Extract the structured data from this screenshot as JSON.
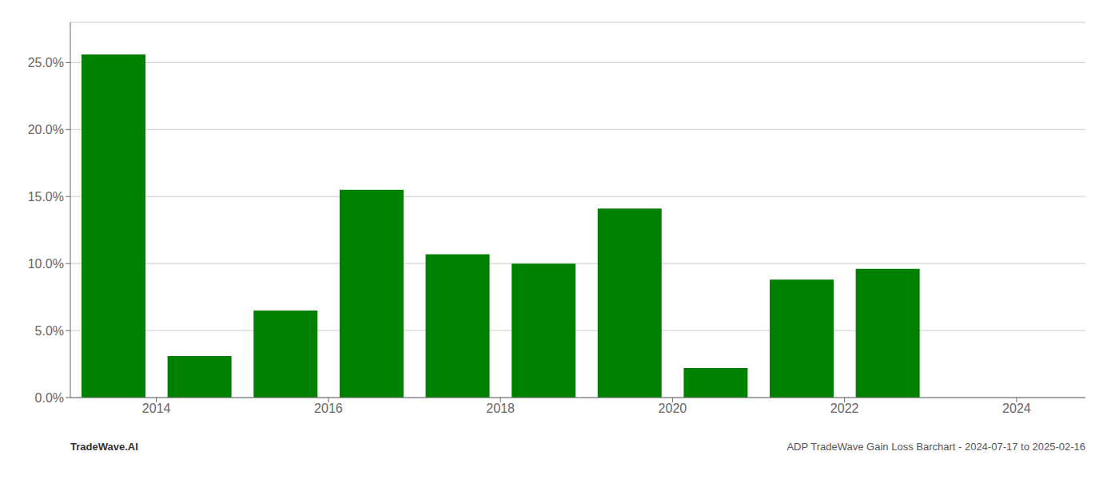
{
  "chart_data": {
    "type": "bar",
    "x": [
      2013.5,
      2014.5,
      2015.5,
      2016.5,
      2017.5,
      2018.5,
      2019.5,
      2020.5,
      2021.5,
      2022.5,
      2023.5
    ],
    "values": [
      0.256,
      0.031,
      0.065,
      0.155,
      0.107,
      0.1,
      0.141,
      0.022,
      0.088,
      0.096,
      0.0
    ],
    "color": "#008000",
    "xlim": [
      2013.0,
      2024.8
    ],
    "xticks": [
      2014,
      2016,
      2018,
      2020,
      2022,
      2024
    ],
    "ylim": [
      0,
      0.28
    ],
    "yticks": [
      {
        "value": 0.0,
        "label": "0.0%"
      },
      {
        "value": 0.05,
        "label": "5.0%"
      },
      {
        "value": 0.1,
        "label": "10.0%"
      },
      {
        "value": 0.15,
        "label": "15.0%"
      },
      {
        "value": 0.2,
        "label": "20.0%"
      },
      {
        "value": 0.25,
        "label": "25.0%"
      }
    ],
    "grid": true,
    "annotations": [
      "TradeWave.AI",
      "ADP TradeWave Gain Loss Barchart - 2024-07-17 to 2025-02-16"
    ]
  }
}
